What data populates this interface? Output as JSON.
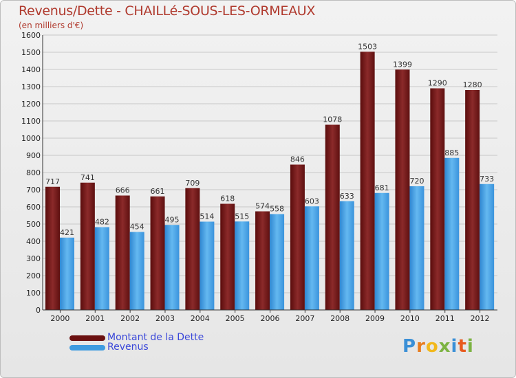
{
  "header": {
    "title": "Revenus/Dette - CHAILLé-SOUS-LES-ORMEAUX",
    "subtitle": "(en milliers d'€)"
  },
  "chart_data": {
    "type": "bar",
    "title": "Revenus/Dette - CHAILLé-SOUS-LES-ORMEAUX",
    "ylabel": "(en milliers d'€)",
    "xlabel": "",
    "categories": [
      "2000",
      "2001",
      "2002",
      "2003",
      "2004",
      "2005",
      "2006",
      "2007",
      "2008",
      "2009",
      "2010",
      "2011",
      "2012"
    ],
    "series": [
      {
        "name": "Montant de la Dette",
        "color": "#7a1a1a",
        "values": [
          717,
          741,
          666,
          661,
          709,
          618,
          574,
          846,
          1078,
          1503,
          1399,
          1290,
          1280
        ]
      },
      {
        "name": "Revenus",
        "color": "#4fa8e6",
        "values": [
          421,
          482,
          454,
          495,
          514,
          515,
          558,
          603,
          633,
          681,
          720,
          885,
          733
        ]
      }
    ],
    "ylim": [
      0,
      1600
    ],
    "yticks": [
      0,
      100,
      200,
      300,
      400,
      500,
      600,
      700,
      800,
      900,
      1000,
      1100,
      1200,
      1300,
      1400,
      1500,
      1600
    ],
    "grid": true,
    "legend": "bottom-left"
  },
  "legend": {
    "items": [
      {
        "label": "Montant de la Dette",
        "color": "#6a1010"
      },
      {
        "label": "Revenus",
        "color": "#3f9be0"
      }
    ]
  },
  "logo": {
    "text": "Proxiti"
  }
}
